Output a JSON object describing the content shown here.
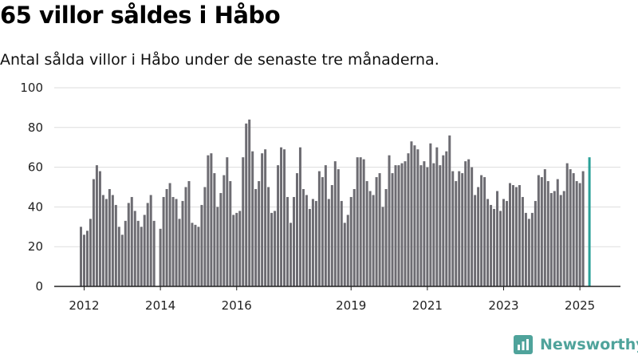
{
  "title": "65 villor såldes i Håbo",
  "subtitle": "Antal sålda villor i Håbo under de senaste tre månaderna.",
  "brand": "Newsworthy",
  "colors": {
    "bar": "#6d6c72",
    "highlight": "#2aa198",
    "grid": "#dddddd",
    "brand": "#4fa39b"
  },
  "chart_data": {
    "type": "bar",
    "ylim": [
      0,
      100
    ],
    "yticks": [
      0,
      20,
      40,
      60,
      80,
      100
    ],
    "xticks": [
      {
        "label": "2012",
        "index": 1
      },
      {
        "label": "2014",
        "index": 25
      },
      {
        "label": "2016",
        "index": 49
      },
      {
        "label": "2019",
        "index": 85
      },
      {
        "label": "2021",
        "index": 109
      },
      {
        "label": "2023",
        "index": 133
      },
      {
        "label": "2025",
        "index": 157
      }
    ],
    "start_month": "2011-12",
    "annotation": {
      "label": "65",
      "index": 161
    },
    "values": [
      30,
      26,
      28,
      34,
      54,
      61,
      58,
      46,
      44,
      49,
      46,
      41,
      30,
      26,
      33,
      42,
      45,
      38,
      33,
      30,
      36,
      42,
      46,
      33,
      0,
      29,
      45,
      49,
      52,
      45,
      44,
      34,
      43,
      50,
      53,
      32,
      31,
      30,
      41,
      50,
      66,
      67,
      57,
      40,
      47,
      56,
      65,
      53,
      36,
      37,
      38,
      65,
      82,
      84,
      68,
      49,
      53,
      67,
      69,
      50,
      37,
      38,
      61,
      70,
      69,
      45,
      32,
      45,
      57,
      70,
      49,
      46,
      39,
      44,
      43,
      58,
      55,
      61,
      44,
      51,
      63,
      59,
      43,
      32,
      36,
      45,
      49,
      65,
      65,
      64,
      53,
      48,
      46,
      55,
      57,
      40,
      49,
      66,
      57,
      61,
      61,
      62,
      63,
      67,
      73,
      71,
      69,
      61,
      63,
      60,
      72,
      62,
      70,
      61,
      66,
      68,
      76,
      58,
      53,
      58,
      57,
      63,
      64,
      60,
      46,
      50,
      56,
      55,
      44,
      41,
      39,
      48,
      38,
      44,
      43,
      52,
      51,
      50,
      51,
      45,
      37,
      34,
      37,
      43,
      56,
      55,
      59,
      53,
      47,
      48,
      54,
      46,
      48,
      62,
      59,
      57,
      53,
      52,
      58,
      0,
      65
    ]
  }
}
